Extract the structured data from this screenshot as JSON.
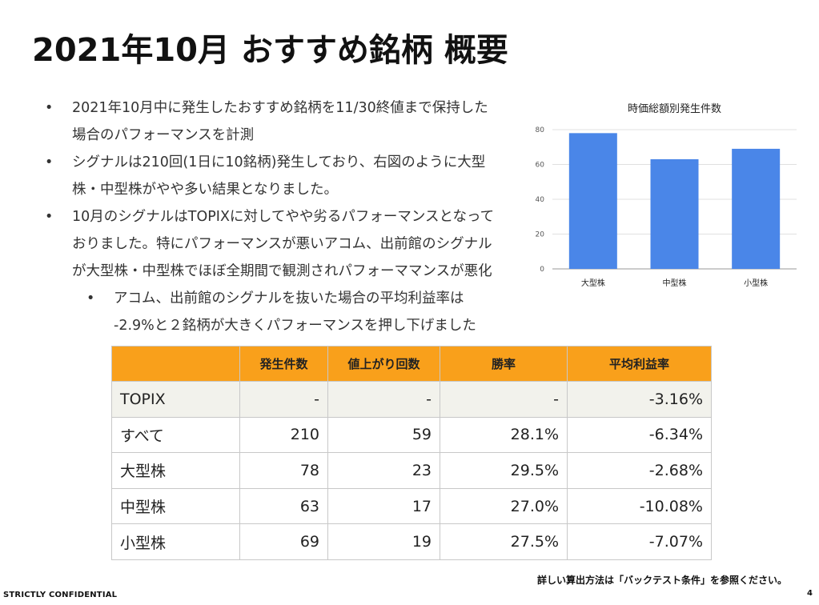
{
  "title": "2021年10月 おすすめ銘柄 概要",
  "bullets": [
    {
      "marker": "•",
      "lines": [
        "2021年10月中に発生したおすすめ銘柄を11/30終値まで保持した",
        "場合のパフォーマンスを計測"
      ]
    },
    {
      "marker": "•",
      "lines": [
        "シグナルは210回(1日に10銘柄)発生しており、右図のように大型",
        "株・中型株がやや多い結果となりました。"
      ]
    },
    {
      "marker": "•",
      "lines": [
        "10月のシグナルはTOPIXに対してやや劣るパフォーマンスとなって",
        "おりました。特にパフォーマンスが悪いアコム、出前館のシグナル",
        "が大型株・中型株でほぼ全期間で観測されパフォーママンスが悪化"
      ]
    },
    {
      "marker": "•",
      "sub": true,
      "lines": [
        "アコム、出前館のシグナルを抜いた場合の平均利益率は",
        "-2.9%と２銘柄が大きくパフォーマンスを押し下げました"
      ]
    }
  ],
  "chart_data": {
    "type": "bar",
    "title": "時価総額別発生件数",
    "categories": [
      "大型株",
      "中型株",
      "小型株"
    ],
    "values": [
      78,
      63,
      69
    ],
    "ylim": [
      0,
      80
    ],
    "yticks": [
      "0",
      "20",
      "40",
      "60",
      "80"
    ],
    "grid": true,
    "color": "#4a86e8"
  },
  "table": {
    "headers": [
      "",
      "発生件数",
      "値上がり回数",
      "勝率",
      "平均利益率"
    ],
    "rows": [
      {
        "label": "TOPIX",
        "cells": [
          "-",
          "-",
          "-",
          "-3.16%"
        ],
        "shaded": true
      },
      {
        "label": "すべて",
        "cells": [
          "210",
          "59",
          "28.1%",
          "-6.34%"
        ]
      },
      {
        "label": "大型株",
        "cells": [
          "78",
          "23",
          "29.5%",
          "-2.68%"
        ]
      },
      {
        "label": "中型株",
        "cells": [
          "63",
          "17",
          "27.0%",
          "-10.08%"
        ]
      },
      {
        "label": "小型株",
        "cells": [
          "69",
          "19",
          "27.5%",
          "-7.07%"
        ]
      }
    ],
    "header_color": "#f9a01b"
  },
  "footnote": "詳しい算出方法は「バックテスト条件」を参照ください。",
  "confidential": "STRICTLY CONFIDENTIAL",
  "page_number": "4"
}
